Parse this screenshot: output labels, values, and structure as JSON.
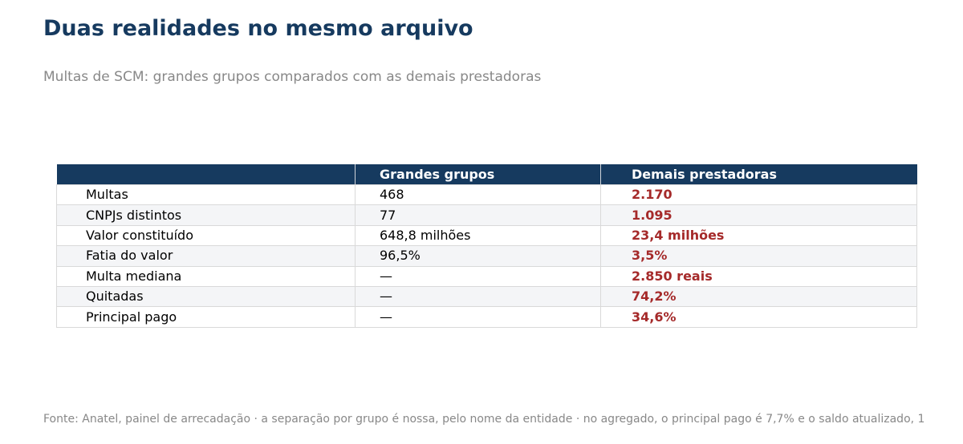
{
  "title": "Duas realidades no mesmo arquivo",
  "subtitle": "Multas de SCM: grandes grupos comparados com as demais prestadoras",
  "source": "Fonte: Anatel, painel de arrecadação · a separação por grupo é nossa, pelo nome da entidade · no agregado, o principal pago é 7,7% e o saldo atualizado, 1",
  "colors": {
    "header_bg": "#163a5f",
    "highlight": "#a52a2a",
    "stripe": "#f4f5f7"
  },
  "chart_data": {
    "type": "table",
    "title": "Duas realidades no mesmo arquivo",
    "subtitle": "Multas de SCM: grandes grupos comparados com as demais prestadoras",
    "columns": [
      "",
      "Grandes grupos",
      "Demais prestadoras"
    ],
    "rows": [
      [
        "Multas",
        "468",
        "2.170"
      ],
      [
        "CNPJs distintos",
        "77",
        "1.095"
      ],
      [
        "Valor constituído",
        "648,8 milhões",
        "23,4 milhões"
      ],
      [
        "Fatia do valor",
        "96,5%",
        "3,5%"
      ],
      [
        "Multa mediana",
        "—",
        "2.850 reais"
      ],
      [
        "Quitadas",
        "—",
        "74,2%"
      ],
      [
        "Principal pago",
        "—",
        "34,6%"
      ]
    ]
  }
}
